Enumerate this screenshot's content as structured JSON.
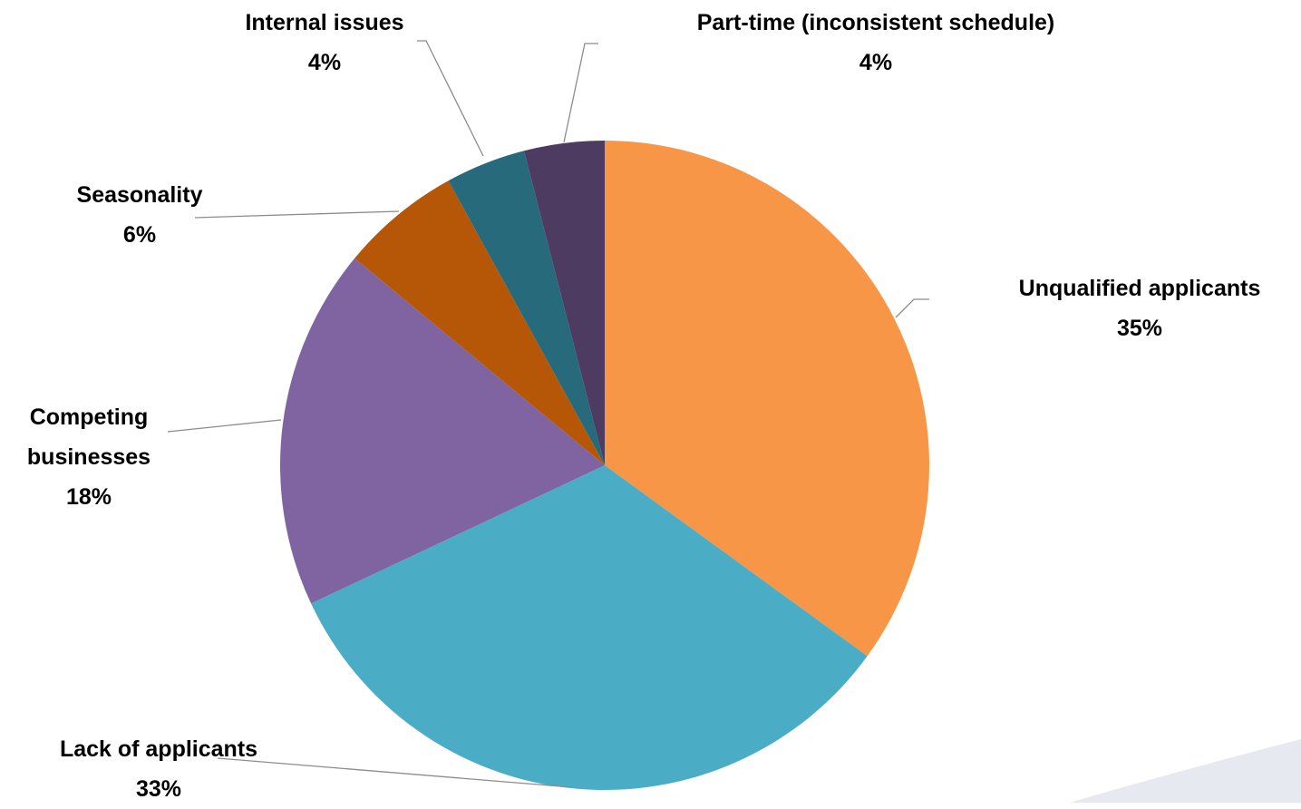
{
  "chart_data": {
    "type": "pie",
    "categories": [
      "Unqualified applicants",
      "Lack of applicants",
      "Competing businesses",
      "Seasonality",
      "Internal issues",
      "Part-time (inconsistent schedule)"
    ],
    "values": [
      35,
      33,
      18,
      6,
      4,
      4
    ],
    "value_labels": [
      "35%",
      "33%",
      "18%",
      "6%",
      "4%",
      "4%"
    ],
    "colors": [
      "#f79646",
      "#4bacc6",
      "#8064a2",
      "#b65708",
      "#276a7c",
      "#4e3b62"
    ]
  }
}
